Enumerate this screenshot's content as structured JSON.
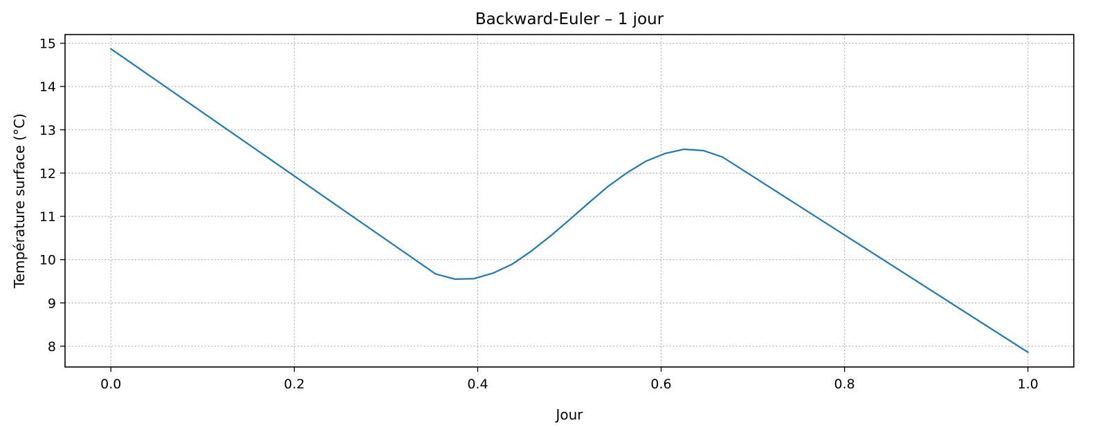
{
  "chart_data": {
    "type": "line",
    "title": "Backward-Euler – 1 jour",
    "xlabel": "Jour",
    "ylabel": "Température surface (°C)",
    "xlim": [
      -0.05,
      1.05
    ],
    "ylim": [
      7.52,
      15.2
    ],
    "xticks": [
      0.0,
      0.2,
      0.4,
      0.6,
      0.8,
      1.0
    ],
    "xtick_labels": [
      "0.0",
      "0.2",
      "0.4",
      "0.6",
      "0.8",
      "1.0"
    ],
    "yticks": [
      8,
      9,
      10,
      11,
      12,
      13,
      14,
      15
    ],
    "ytick_labels": [
      "8",
      "9",
      "10",
      "11",
      "12",
      "13",
      "14",
      "15"
    ],
    "grid": true,
    "legend": "none",
    "color": "#1f77b4",
    "series": [
      {
        "x": [
          0.0,
          0.354,
          0.375,
          0.396,
          0.417,
          0.438,
          0.458,
          0.479,
          0.5,
          0.521,
          0.542,
          0.563,
          0.583,
          0.604,
          0.625,
          0.646,
          0.667,
          1.0
        ],
        "y": [
          14.87,
          9.67,
          9.55,
          9.56,
          9.69,
          9.9,
          10.19,
          10.54,
          10.92,
          11.31,
          11.69,
          12.01,
          12.27,
          12.45,
          12.55,
          12.52,
          12.37,
          7.86
        ]
      }
    ]
  }
}
